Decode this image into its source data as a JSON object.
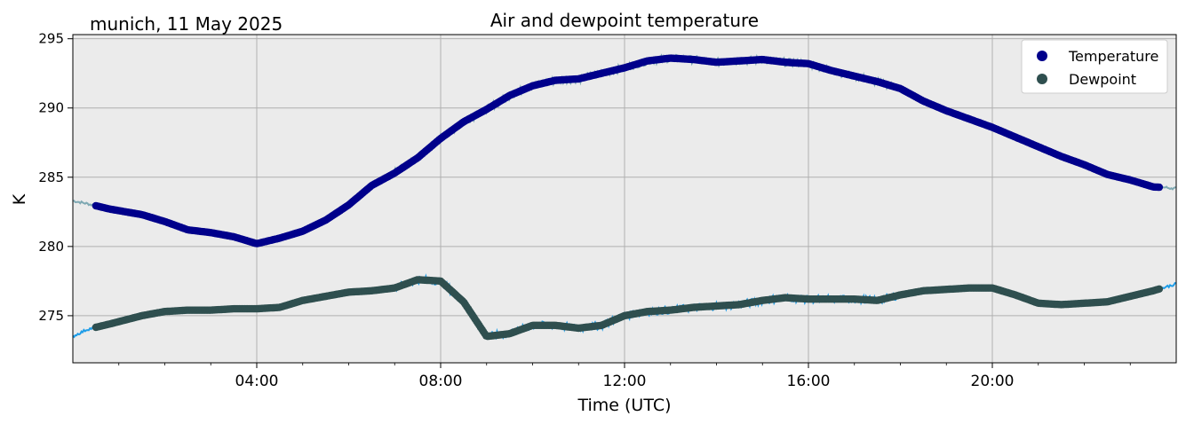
{
  "chart_data": {
    "type": "line",
    "title": "Air and dewpoint temperature",
    "subtitle": "munich, 11 May 2025",
    "xlabel": "Time (UTC)",
    "ylabel": "K",
    "xlim": [
      0,
      24
    ],
    "ylim": [
      271.6,
      295.3
    ],
    "x_ticks": [
      {
        "value": 4,
        "label": "04:00"
      },
      {
        "value": 8,
        "label": "08:00"
      },
      {
        "value": 12,
        "label": "12:00"
      },
      {
        "value": 16,
        "label": "16:00"
      },
      {
        "value": 20,
        "label": "20:00"
      }
    ],
    "y_ticks": [
      {
        "value": 275,
        "label": "275"
      },
      {
        "value": 280,
        "label": "280"
      },
      {
        "value": 285,
        "label": "285"
      },
      {
        "value": 290,
        "label": "290"
      },
      {
        "value": 295,
        "label": "295"
      }
    ],
    "grid": true,
    "legend_position": "top-right",
    "background_color": "#ebebeb",
    "grid_color": "#b0b0b0",
    "series": [
      {
        "name": "Temperature",
        "color": "#00008b",
        "raw_color": "#7fa9b3",
        "x": [
          0,
          0.3,
          0.8,
          1.5,
          2.0,
          2.5,
          3.0,
          3.5,
          4.0,
          4.5,
          5.0,
          5.5,
          6.0,
          6.5,
          7.0,
          7.5,
          8.0,
          8.5,
          9.0,
          9.5,
          10.0,
          10.5,
          11.0,
          11.5,
          12.0,
          12.5,
          13.0,
          13.5,
          14.0,
          14.5,
          15.0,
          15.5,
          16.0,
          16.5,
          17.0,
          17.5,
          18.0,
          18.5,
          19.0,
          19.5,
          20.0,
          20.5,
          21.0,
          21.5,
          22.0,
          22.5,
          23.0,
          23.5,
          24.0
        ],
        "values": [
          283.3,
          283.1,
          282.7,
          282.3,
          281.8,
          281.2,
          281.0,
          280.7,
          280.2,
          280.6,
          281.1,
          281.9,
          283.0,
          284.4,
          285.3,
          286.4,
          287.8,
          289.0,
          289.9,
          290.9,
          291.6,
          292.0,
          292.1,
          292.5,
          292.9,
          293.4,
          293.6,
          293.5,
          293.3,
          293.4,
          293.5,
          293.3,
          293.2,
          292.7,
          292.3,
          291.9,
          291.4,
          290.5,
          289.8,
          289.2,
          288.6,
          287.9,
          287.2,
          286.5,
          285.9,
          285.2,
          284.8,
          284.3,
          284.2
        ]
      },
      {
        "name": "Dewpoint",
        "color": "#2f4f4f",
        "raw_color": "#1e9de8",
        "x": [
          0,
          0.3,
          0.8,
          1.5,
          2.0,
          2.5,
          3.0,
          3.5,
          4.0,
          4.5,
          5.0,
          5.5,
          6.0,
          6.5,
          7.0,
          7.5,
          8.0,
          8.5,
          9.0,
          9.5,
          10.0,
          10.5,
          11.0,
          11.5,
          12.0,
          12.5,
          13.0,
          13.5,
          14.0,
          14.5,
          15.0,
          15.5,
          16.0,
          16.5,
          17.0,
          17.5,
          18.0,
          18.5,
          19.0,
          19.5,
          20.0,
          20.5,
          21.0,
          21.5,
          22.0,
          22.5,
          23.0,
          23.5,
          24.0
        ],
        "values": [
          273.5,
          274.0,
          274.4,
          275.0,
          275.3,
          275.4,
          275.4,
          275.5,
          275.5,
          275.6,
          276.1,
          276.4,
          276.7,
          276.8,
          277.0,
          277.6,
          277.5,
          276.0,
          273.5,
          273.7,
          274.3,
          274.3,
          274.1,
          274.3,
          275.0,
          275.3,
          275.4,
          275.6,
          275.7,
          275.8,
          276.1,
          276.3,
          276.2,
          276.2,
          276.2,
          276.1,
          276.5,
          276.8,
          276.9,
          277.0,
          277.0,
          276.5,
          275.9,
          275.8,
          275.9,
          276.0,
          276.4,
          276.8,
          277.3
        ]
      }
    ]
  }
}
